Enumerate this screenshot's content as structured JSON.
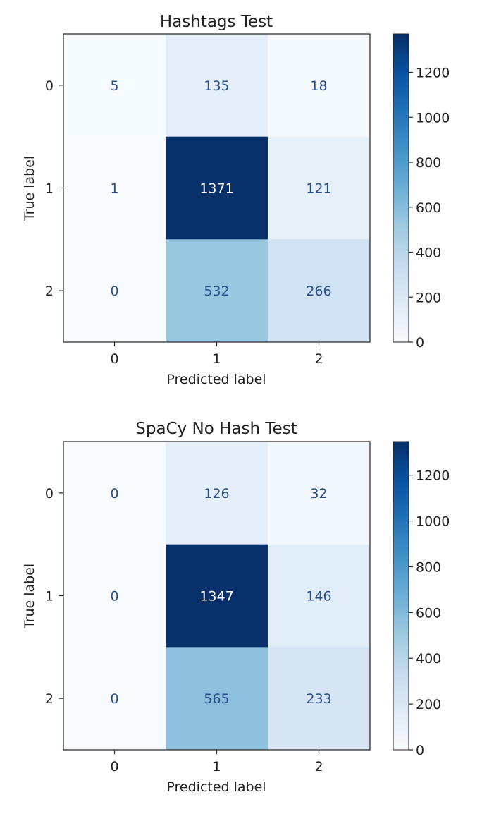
{
  "colors": {
    "cmap_low": "#f7fbff",
    "cmap_mid": "#6baed6",
    "cmap_high": "#08306b",
    "text_dark": "#ffffff",
    "text_light": "#2a4d8c",
    "axis": "#222222"
  },
  "chart_data": [
    {
      "type": "heatmap",
      "title": "Hashtags Test",
      "xlabel": "Predicted label",
      "ylabel": "True label",
      "x_tick_labels": [
        "0",
        "1",
        "2"
      ],
      "y_tick_labels": [
        "0",
        "1",
        "2"
      ],
      "matrix": [
        [
          5,
          135,
          18
        ],
        [
          1,
          1371,
          121
        ],
        [
          0,
          532,
          266
        ]
      ],
      "colorbar": {
        "min": 0,
        "max": 1371,
        "ticks": [
          0,
          200,
          400,
          600,
          800,
          1000,
          1200
        ],
        "tick_labels": [
          "0",
          "200",
          "400",
          "600",
          "800",
          "1000",
          "1200"
        ],
        "colormap": "Blues"
      }
    },
    {
      "type": "heatmap",
      "title": "SpaCy No Hash Test",
      "xlabel": "Predicted label",
      "ylabel": "True label",
      "x_tick_labels": [
        "0",
        "1",
        "2"
      ],
      "y_tick_labels": [
        "0",
        "1",
        "2"
      ],
      "matrix": [
        [
          0,
          126,
          32
        ],
        [
          0,
          1347,
          146
        ],
        [
          0,
          565,
          233
        ]
      ],
      "colorbar": {
        "min": 0,
        "max": 1347,
        "ticks": [
          0,
          200,
          400,
          600,
          800,
          1000,
          1200
        ],
        "tick_labels": [
          "0",
          "200",
          "400",
          "600",
          "800",
          "1000",
          "1200"
        ],
        "colormap": "Blues"
      }
    }
  ]
}
